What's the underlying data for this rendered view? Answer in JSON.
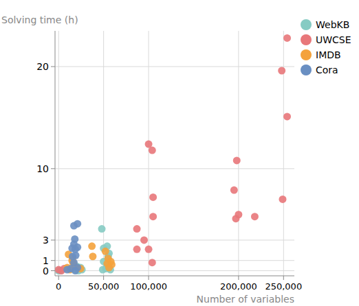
{
  "chart_data": {
    "type": "scatter",
    "x_label": "Number of variables",
    "y_label": "Solving time (h)",
    "xlim": [
      -4000,
      262000
    ],
    "ylim": [
      -0.5,
      23.5
    ],
    "xticks": [
      0,
      {
        "value": 50000,
        "label": "50,000"
      },
      {
        "value": 100000,
        "label": "100,000"
      },
      {
        "value": 200000,
        "label": "200,000"
      },
      {
        "value": 250000,
        "label": "250,000"
      }
    ],
    "yticks": [
      0,
      1,
      3,
      10,
      20
    ],
    "grid": true,
    "legend": "top-right",
    "marker": "circle",
    "series": [
      {
        "name": "WebKB",
        "color": "#86cbc3",
        "x": [
          0,
          2000,
          20700,
          23000,
          18500,
          24400,
          22000,
          25900,
          48000,
          50000,
          54000,
          56000,
          55000,
          50000,
          54000,
          52500,
          56000,
          49000,
          57500
        ],
        "values": [
          0.0,
          0.0,
          0.4,
          0.2,
          0.1,
          0.3,
          0.0,
          0.1,
          4.1,
          2.2,
          2.4,
          1.7,
          1.4,
          0.9,
          0.5,
          0.2,
          0.3,
          0.1,
          0.1
        ]
      },
      {
        "name": "UWCSE",
        "color": "#e8777a",
        "x": [
          254000,
          248000,
          254000,
          100000,
          104000,
          198000,
          195000,
          105000,
          249000,
          105000,
          200000,
          197000,
          218000,
          87000,
          95000,
          100000,
          87000,
          104000,
          0,
          6000,
          3000
        ],
        "values": [
          22.8,
          19.6,
          15.1,
          12.4,
          11.8,
          10.8,
          7.9,
          7.2,
          7.0,
          5.3,
          5.5,
          5.1,
          5.3,
          4.1,
          3.0,
          2.1,
          2.1,
          0.8,
          0.1,
          0.2,
          0.0
        ]
      },
      {
        "name": "IMDB",
        "color": "#f4a23c",
        "x": [
          11000,
          15000,
          15500,
          16000,
          17500,
          9500,
          24400,
          37000,
          38000,
          52000,
          55000,
          58000,
          54000,
          59000,
          56000,
          12500
        ],
        "values": [
          1.6,
          1.0,
          1.2,
          0.8,
          0.5,
          0.3,
          0.2,
          2.4,
          1.4,
          1.9,
          1.2,
          0.9,
          0.7,
          0.6,
          0.3,
          0.1
        ]
      },
      {
        "name": "Cora",
        "color": "#6a8fc2",
        "x": [
          17000,
          21000,
          18000,
          17000,
          15000,
          21000,
          18500,
          15500,
          19000,
          17000,
          13500,
          21000,
          18500,
          9500
        ],
        "values": [
          4.4,
          4.6,
          3.1,
          2.6,
          2.2,
          2.3,
          2.1,
          1.4,
          1.5,
          0.8,
          0.2,
          0.3,
          0.0,
          0.1
        ]
      }
    ]
  }
}
